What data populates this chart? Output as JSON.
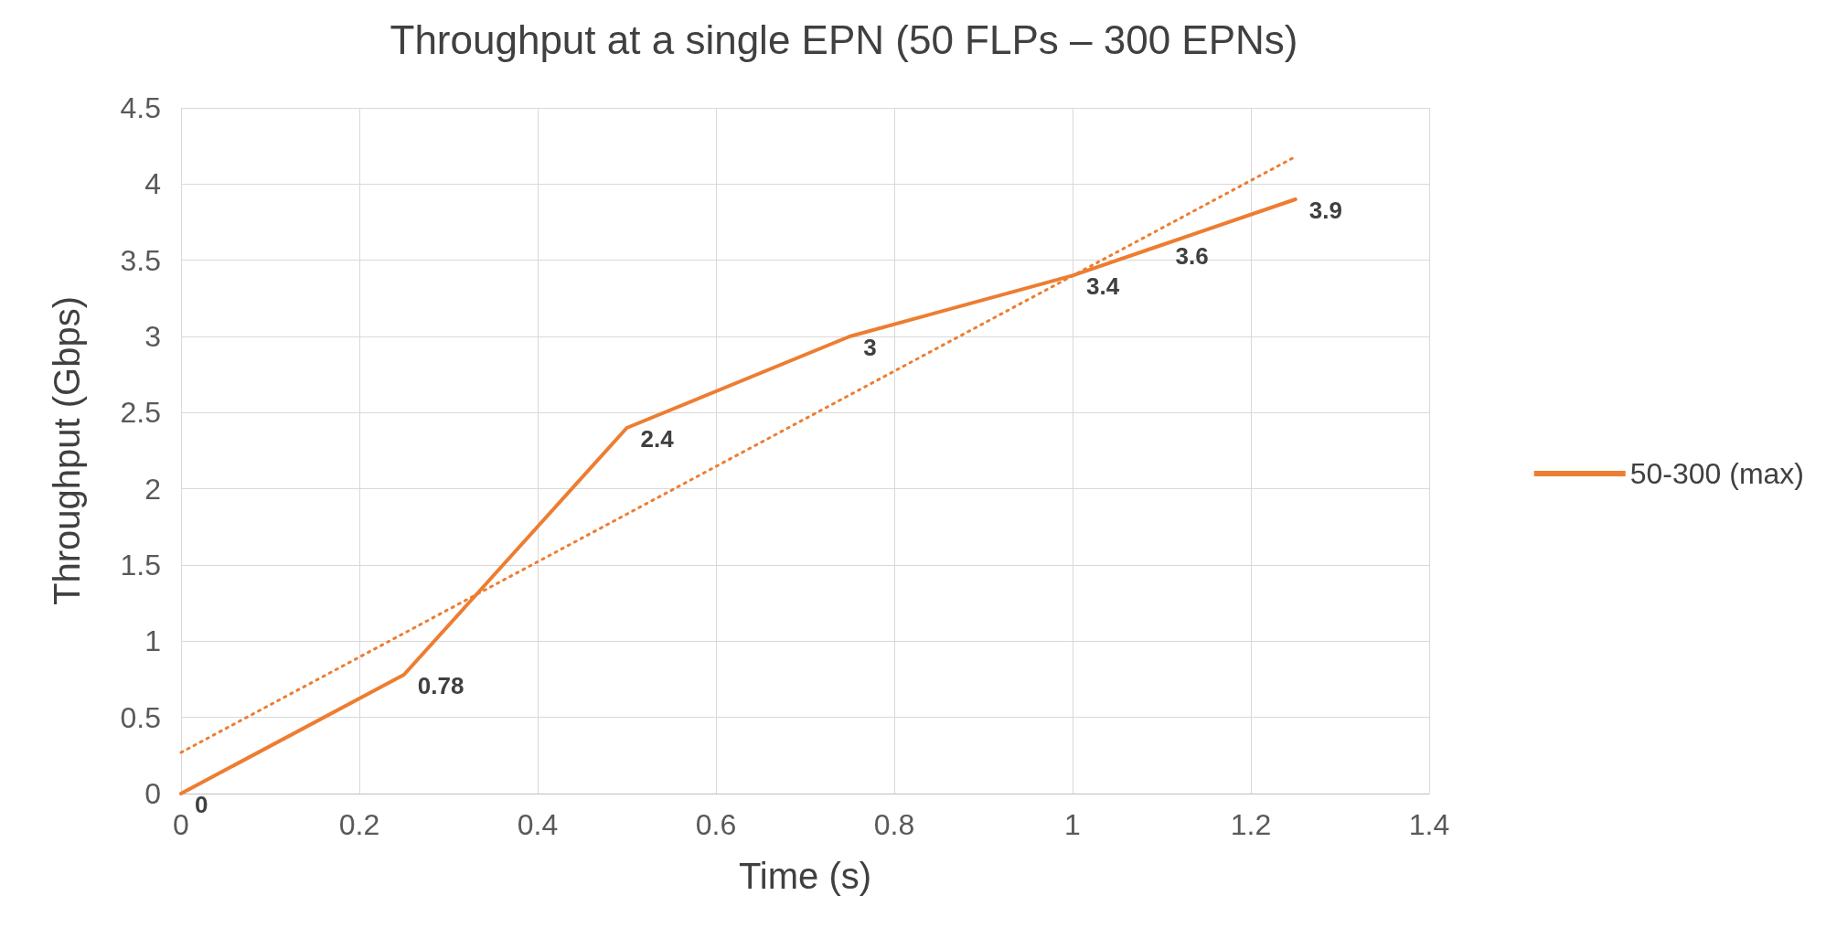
{
  "chart_data": {
    "type": "line",
    "title": "Throughput at a single EPN (50 FLPs – 300 EPNs)",
    "xlabel": "Time (s)",
    "ylabel": "Throughput (Gbps)",
    "series": [
      {
        "name": "50-300 (max)",
        "color": "#ed7d31",
        "x": [
          0,
          0.25,
          0.5,
          0.75,
          1,
          1.1,
          1.25
        ],
        "values": [
          0,
          0.78,
          2.4,
          3,
          3.4,
          3.6,
          3.9
        ],
        "value_labels": [
          "0",
          "0.78",
          "2.4",
          "3",
          "3.4",
          "3.6",
          "3.9"
        ]
      },
      {
        "type": "line",
        "color": "#ed7d31",
        "line_style": "dotted",
        "x": [
          0,
          1.25
        ],
        "values": [
          0.27,
          4.18
        ]
      }
    ],
    "xlim": [
      0,
      1.4
    ],
    "xticks": [
      0,
      0.2,
      0.4,
      0.6,
      0.8,
      1,
      1.2,
      1.4
    ],
    "ylim": [
      0,
      4.5
    ],
    "yticks": [
      0,
      0.5,
      1,
      1.5,
      2,
      2.5,
      3,
      3.5,
      4,
      4.5
    ],
    "grid": true,
    "legend": "right",
    "marker": "none",
    "line_style": "solid"
  }
}
